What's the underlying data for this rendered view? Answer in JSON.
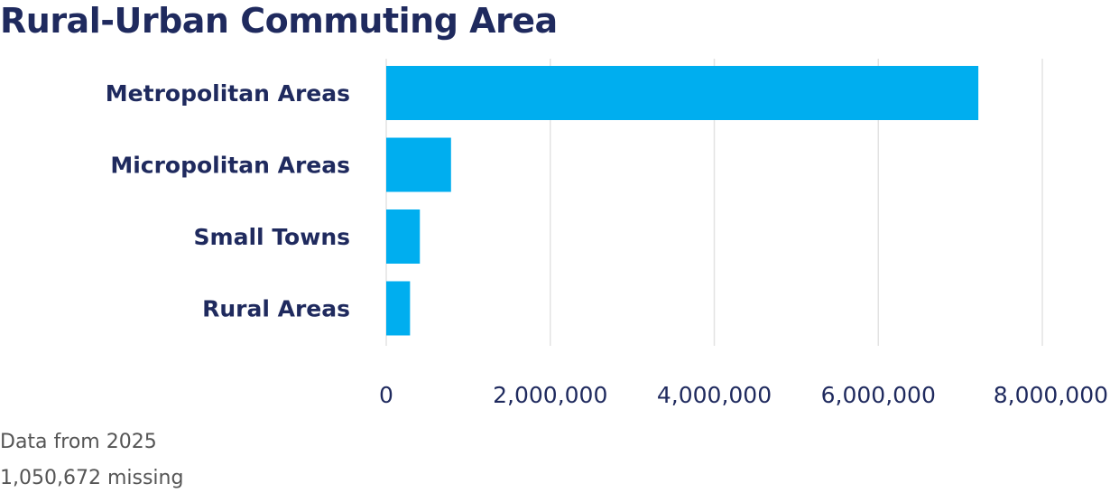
{
  "chart_data": {
    "type": "bar",
    "orientation": "horizontal",
    "title": "Rural-Urban Commuting Area",
    "categories": [
      "Metropolitan Areas",
      "Micropolitan Areas",
      "Small Towns",
      "Rural Areas"
    ],
    "values": [
      7220000,
      790000,
      410000,
      290000
    ],
    "xlim": [
      0,
      8000000
    ],
    "xticks": [
      0,
      2000000,
      4000000,
      6000000,
      8000000
    ],
    "xtick_labels": [
      "0",
      "2,000,000",
      "4,000,000",
      "6,000,000",
      "8,000,000"
    ],
    "grid": true,
    "bar_color": "#00aeef"
  },
  "footnotes": {
    "data_year": "Data from 2025",
    "missing": "1,050,672 missing"
  }
}
